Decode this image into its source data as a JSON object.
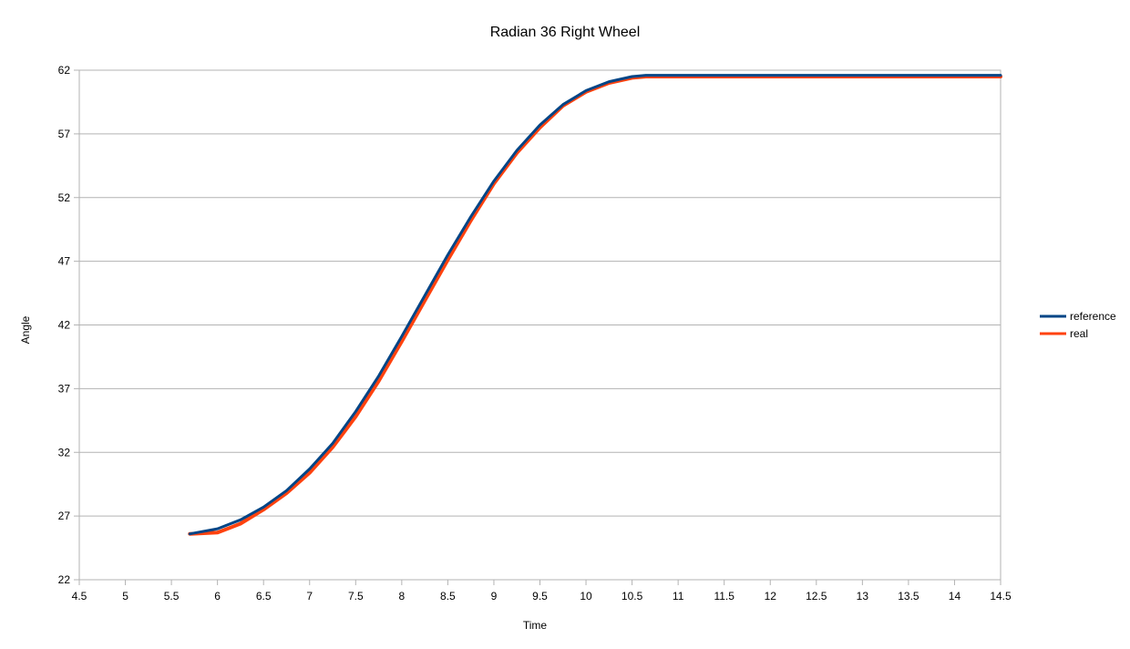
{
  "chart_data": {
    "type": "line",
    "title": "Radian 36 Right Wheel",
    "xlabel": "Time",
    "ylabel": "Angle",
    "xlim": [
      4.5,
      14.5
    ],
    "ylim": [
      22,
      62
    ],
    "x_ticks": [
      "4.5",
      "5",
      "5.5",
      "6",
      "6.5",
      "7",
      "7.5",
      "8",
      "8.5",
      "9",
      "9.5",
      "10",
      "10.5",
      "11",
      "11.5",
      "12",
      "12.5",
      "13",
      "13.5",
      "14",
      "14.5"
    ],
    "y_ticks": [
      "22",
      "27",
      "32",
      "37",
      "42",
      "47",
      "52",
      "57",
      "62"
    ],
    "grid": "horizontal",
    "legend_position": "right",
    "series": [
      {
        "name": "reference",
        "color": "#004586",
        "x": [
          5.7,
          6.0,
          6.25,
          6.5,
          6.75,
          7.0,
          7.25,
          7.5,
          7.75,
          8.0,
          8.25,
          8.5,
          8.75,
          9.0,
          9.25,
          9.5,
          9.75,
          10.0,
          10.25,
          10.5,
          10.65,
          11.0,
          12.0,
          13.0,
          14.0,
          14.5
        ],
        "y": [
          25.6,
          26.0,
          26.7,
          27.7,
          29.0,
          30.7,
          32.7,
          35.2,
          38.0,
          41.1,
          44.3,
          47.5,
          50.5,
          53.3,
          55.7,
          57.7,
          59.3,
          60.4,
          61.1,
          61.5,
          61.6,
          61.6,
          61.6,
          61.6,
          61.6,
          61.6
        ]
      },
      {
        "name": "real",
        "color": "#ff420e",
        "x": [
          5.7,
          6.0,
          6.25,
          6.5,
          6.75,
          7.0,
          7.25,
          7.5,
          7.75,
          8.0,
          8.25,
          8.5,
          8.75,
          9.0,
          9.25,
          9.5,
          9.75,
          10.0,
          10.25,
          10.5,
          10.65,
          11.0,
          12.0,
          13.0,
          14.0,
          14.5
        ],
        "y": [
          25.6,
          25.7,
          26.4,
          27.5,
          28.8,
          30.4,
          32.4,
          34.8,
          37.6,
          40.7,
          43.9,
          47.1,
          50.2,
          53.1,
          55.5,
          57.5,
          59.2,
          60.3,
          61.0,
          61.4,
          61.5,
          61.5,
          61.5,
          61.5,
          61.5,
          61.5
        ]
      }
    ]
  }
}
